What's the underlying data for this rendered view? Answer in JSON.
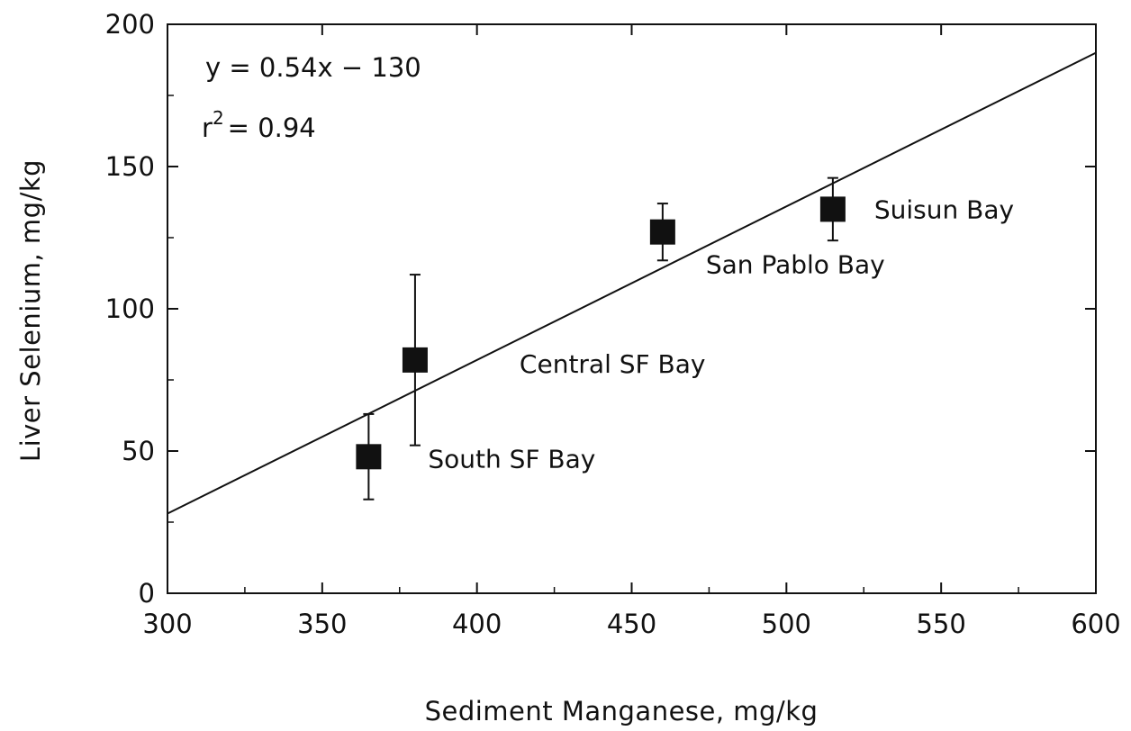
{
  "chart_data": {
    "type": "scatter",
    "title": "",
    "xlabel": "Sediment Manganese, mg/kg",
    "ylabel": "Liver Selenium, mg/kg",
    "xlim": [
      300,
      600
    ],
    "ylim": [
      0,
      200
    ],
    "x_ticks": [
      300,
      350,
      400,
      450,
      500,
      550,
      600
    ],
    "y_ticks": [
      0,
      50,
      100,
      150,
      200
    ],
    "x_tick_labels": [
      "300",
      "350",
      "400",
      "450",
      "500",
      "550",
      "600"
    ],
    "y_tick_labels": [
      "0",
      "50",
      "100",
      "150",
      "200"
    ],
    "grid": false,
    "legend": "none",
    "points": [
      {
        "label": "South SF Bay",
        "x": 365,
        "y": 48,
        "err_low": 33,
        "err_high": 63
      },
      {
        "label": "Central SF Bay",
        "x": 380,
        "y": 82,
        "err_low": 52,
        "err_high": 112
      },
      {
        "label": "San Pablo Bay",
        "x": 460,
        "y": 127,
        "err_low": 117,
        "err_high": 137
      },
      {
        "label": "Suisun Bay",
        "x": 515,
        "y": 135,
        "err_low": 124,
        "err_high": 146
      }
    ],
    "fit_line": {
      "slope": 0.54,
      "intercept": -134,
      "x_range": [
        300,
        600
      ]
    },
    "annotations": {
      "equation": "y = 0.54x − 130",
      "r2_prefix": "r",
      "r2_sup": "2",
      "r2_value": "= 0.94"
    }
  }
}
